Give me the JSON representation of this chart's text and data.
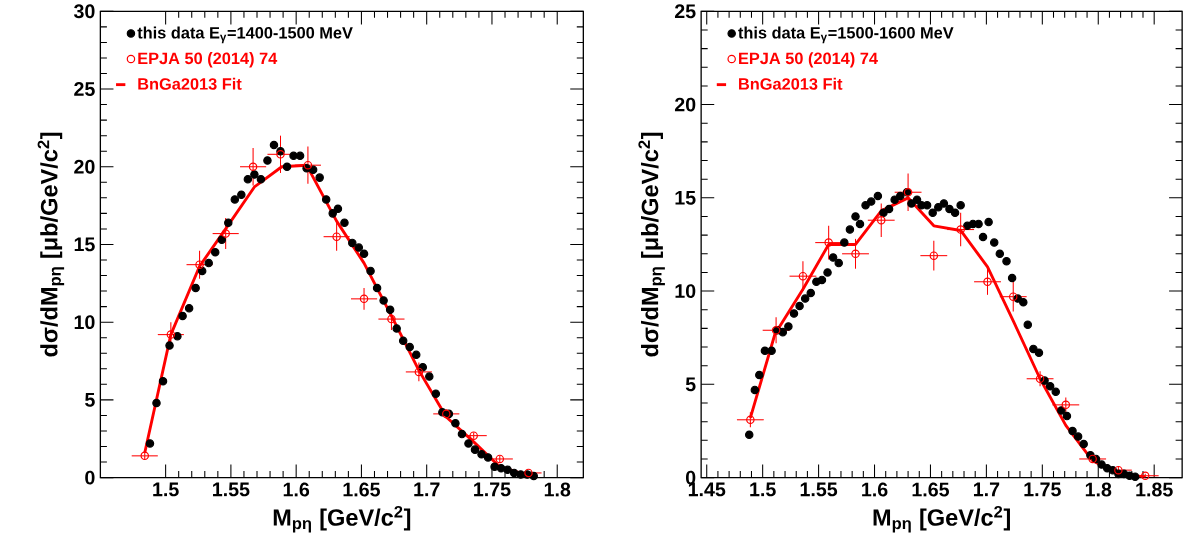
{
  "chart_data": [
    {
      "type": "scatter",
      "xlabel": "M$_{pη}$ [GeV/c$^{2}$]",
      "ylabel": "dσ/dM$_{pη}$ [μb/GeV/c$^{2}$]",
      "xlim": [
        1.45,
        1.82
      ],
      "ylim": [
        0,
        30
      ],
      "xticks": [
        1.5,
        1.55,
        1.6,
        1.65,
        1.7,
        1.75,
        1.8
      ],
      "yticks": [
        0,
        5,
        10,
        15,
        20,
        25,
        30
      ],
      "legend": "top left",
      "grid": false,
      "series": [
        {
          "name": "this data  E$_{γ}$=1400-1500 MeV",
          "color": "#000000",
          "marker": "circle",
          "x": [
            1.488,
            1.493,
            1.498,
            1.503,
            1.509,
            1.513,
            1.518,
            1.523,
            1.528,
            1.533,
            1.538,
            1.543,
            1.548,
            1.553,
            1.558,
            1.563,
            1.568,
            1.573,
            1.578,
            1.583,
            1.588,
            1.593,
            1.598,
            1.603,
            1.608,
            1.613,
            1.618,
            1.623,
            1.628,
            1.632,
            1.637,
            1.643,
            1.648,
            1.652,
            1.657,
            1.662,
            1.667,
            1.672,
            1.677,
            1.682,
            1.687,
            1.692,
            1.697,
            1.702,
            1.707,
            1.712,
            1.717,
            1.722,
            1.727,
            1.732,
            1.737,
            1.742,
            1.747,
            1.752,
            1.757,
            1.762,
            1.767,
            1.772,
            1.777,
            1.782
          ],
          "values": [
            2.2,
            4.8,
            6.2,
            8.5,
            9.1,
            10.4,
            10.9,
            12.2,
            13.3,
            13.8,
            14.5,
            15.3,
            16.4,
            17.9,
            18.2,
            19.2,
            19.5,
            19.2,
            20.4,
            21.4,
            21.0,
            20.0,
            20.7,
            20.7,
            19.9,
            19.8,
            19.3,
            17.9,
            17.0,
            17.3,
            16.4,
            15.1,
            14.8,
            14.4,
            13.3,
            12.2,
            11.4,
            10.8,
            9.6,
            8.8,
            8.4,
            7.9,
            7.1,
            6.5,
            5.4,
            4.2,
            4.1,
            3.5,
            2.8,
            2.2,
            1.8,
            1.5,
            1.3,
            0.7,
            0.6,
            0.5,
            0.3,
            0.2,
            0.2,
            0.1
          ]
        },
        {
          "name": "EPJA 50 (2014) 74",
          "color": "#ff0000",
          "marker": "circle",
          "x": [
            1.484,
            1.504,
            1.526,
            1.546,
            1.567,
            1.588,
            1.609,
            1.631,
            1.652,
            1.673,
            1.694,
            1.715,
            1.736,
            1.756,
            1.778
          ],
          "values": [
            1.4,
            9.2,
            13.7,
            15.7,
            20.0,
            20.8,
            20.1,
            15.5,
            11.5,
            10.2,
            6.8,
            4.1,
            2.7,
            1.2,
            0.3
          ],
          "errors": [
            0.2,
            0.8,
            0.9,
            1.0,
            1.2,
            1.2,
            1.2,
            0.9,
            0.7,
            0.7,
            0.6,
            0.3,
            0.2,
            0.2,
            0.1
          ],
          "xerrors": [
            0.01,
            0.01,
            0.01,
            0.01,
            0.01,
            0.01,
            0.01,
            0.01,
            0.01,
            0.01,
            0.01,
            0.01,
            0.01,
            0.01,
            0.01
          ]
        },
        {
          "name": "BnGa2013 Fit",
          "type": "line",
          "color": "#ff0000",
          "marker": "none",
          "x": [
            1.484,
            1.504,
            1.526,
            1.546,
            1.568,
            1.589,
            1.608,
            1.631,
            1.652,
            1.673,
            1.694,
            1.715,
            1.736,
            1.756,
            1.778
          ],
          "values": [
            1.6,
            9.2,
            13.6,
            16.0,
            18.7,
            20.0,
            20.1,
            16.5,
            13.8,
            10.4,
            6.9,
            3.9,
            2.3,
            0.7,
            0.15
          ]
        }
      ]
    },
    {
      "type": "scatter",
      "xlabel": "M$_{pη}$ [GeV/c$^{2}$]",
      "ylabel": "dσ/dM$_{pη}$ [μb/GeV/c$^{2}$]",
      "xlim": [
        1.445,
        1.875
      ],
      "ylim": [
        0,
        25
      ],
      "xticks": [
        1.45,
        1.5,
        1.55,
        1.6,
        1.65,
        1.7,
        1.75,
        1.8,
        1.85
      ],
      "yticks": [
        0,
        5,
        10,
        15,
        20,
        25
      ],
      "legend": "top left",
      "grid": false,
      "series": [
        {
          "name": "this data  E$_{γ}$=1500-1600 MeV",
          "color": "#000000",
          "marker": "circle",
          "x": [
            1.488,
            1.493,
            1.497,
            1.502,
            1.508,
            1.513,
            1.518,
            1.523,
            1.528,
            1.533,
            1.538,
            1.543,
            1.548,
            1.553,
            1.558,
            1.563,
            1.568,
            1.573,
            1.578,
            1.583,
            1.587,
            1.592,
            1.597,
            1.603,
            1.608,
            1.613,
            1.618,
            1.623,
            1.629,
            1.633,
            1.638,
            1.642,
            1.647,
            1.652,
            1.657,
            1.662,
            1.667,
            1.672,
            1.677,
            1.683,
            1.688,
            1.693,
            1.697,
            1.702,
            1.707,
            1.712,
            1.718,
            1.723,
            1.728,
            1.733,
            1.737,
            1.742,
            1.747,
            1.752,
            1.757,
            1.762,
            1.767,
            1.772,
            1.777,
            1.782,
            1.787,
            1.793,
            1.798,
            1.803,
            1.808,
            1.813,
            1.818,
            1.823,
            1.828,
            1.833
          ],
          "values": [
            2.3,
            4.7,
            5.5,
            6.8,
            6.8,
            7.9,
            7.8,
            8.1,
            8.8,
            9.2,
            9.6,
            9.9,
            10.5,
            10.6,
            11.0,
            11.8,
            11.5,
            12.6,
            13.3,
            14.0,
            13.6,
            14.6,
            14.8,
            15.1,
            14.2,
            14.4,
            14.9,
            15.1,
            15.3,
            14.7,
            14.9,
            14.6,
            14.6,
            14.2,
            14.5,
            14.7,
            14.4,
            14.2,
            14.6,
            13.5,
            13.6,
            13.6,
            12.9,
            13.7,
            12.6,
            12.0,
            11.6,
            10.7,
            9.6,
            9.4,
            8.2,
            6.9,
            6.7,
            5.2,
            4.9,
            4.6,
            3.6,
            3.3,
            2.5,
            2.2,
            1.8,
            1.2,
            1.0,
            0.7,
            0.5,
            0.4,
            0.2,
            0.2,
            0.1,
            0.05
          ]
        },
        {
          "name": "EPJA 50 (2014) 74",
          "color": "#ff0000",
          "marker": "circle",
          "x": [
            1.489,
            1.512,
            1.536,
            1.559,
            1.583,
            1.606,
            1.63,
            1.653,
            1.677,
            1.701,
            1.724,
            1.748,
            1.771,
            1.795,
            1.818,
            1.842
          ],
          "values": [
            3.1,
            7.9,
            10.8,
            12.6,
            12.0,
            13.8,
            15.3,
            11.9,
            13.3,
            10.5,
            9.7,
            5.3,
            3.9,
            1.0,
            0.4,
            0.1
          ],
          "errors": [
            0.4,
            0.7,
            0.8,
            0.9,
            0.8,
            0.9,
            1.0,
            0.8,
            0.9,
            0.7,
            0.8,
            0.4,
            0.4,
            0.2,
            0.2,
            0.1
          ],
          "xerrors": [
            0.012,
            0.012,
            0.012,
            0.012,
            0.012,
            0.012,
            0.012,
            0.012,
            0.012,
            0.012,
            0.012,
            0.012,
            0.012,
            0.012,
            0.012,
            0.012
          ]
        },
        {
          "name": "BnGa2013 Fit",
          "type": "line",
          "color": "#ff0000",
          "marker": "none",
          "x": [
            1.489,
            1.511,
            1.536,
            1.559,
            1.583,
            1.606,
            1.63,
            1.653,
            1.677,
            1.701,
            1.724,
            1.748,
            1.771,
            1.795,
            1.818,
            1.842
          ],
          "values": [
            3.2,
            7.7,
            10.1,
            12.5,
            12.5,
            14.3,
            15.0,
            13.5,
            13.25,
            11.3,
            8.4,
            5.3,
            2.8,
            0.9,
            0.2,
            0.04
          ]
        }
      ]
    }
  ]
}
